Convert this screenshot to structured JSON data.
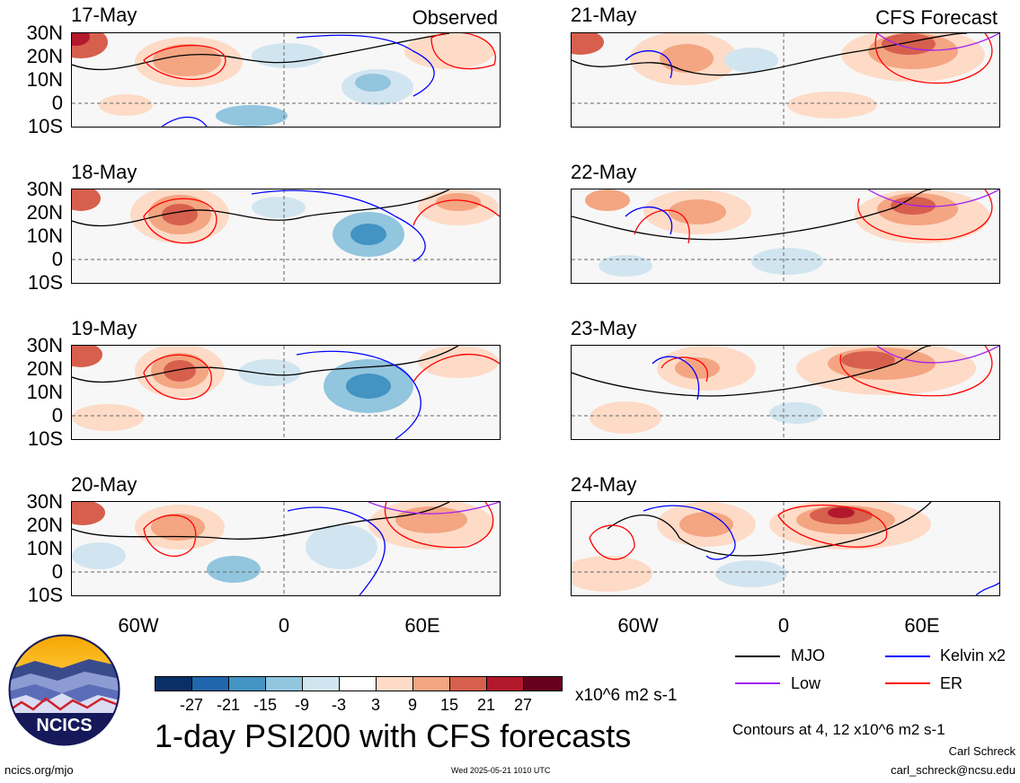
{
  "panels": [
    {
      "date": "17-May",
      "tag": "Observed"
    },
    {
      "date": "21-May",
      "tag": "CFS Forecast"
    },
    {
      "date": "18-May",
      "tag": ""
    },
    {
      "date": "22-May",
      "tag": ""
    },
    {
      "date": "19-May",
      "tag": ""
    },
    {
      "date": "23-May",
      "tag": ""
    },
    {
      "date": "20-May",
      "tag": ""
    },
    {
      "date": "24-May",
      "tag": ""
    }
  ],
  "lat_labels": [
    "30N",
    "20N",
    "10N",
    "0",
    "10S"
  ],
  "lon_labels": [
    "60W",
    "0",
    "60E"
  ],
  "colorbar": {
    "labels": [
      "-27",
      "-21",
      "-15",
      "-9",
      "-3",
      "3",
      "9",
      "15",
      "21",
      "27"
    ],
    "colors": [
      "#0a2f66",
      "#2166ac",
      "#4393c3",
      "#92c5de",
      "#d1e5f0",
      "#ffffff",
      "#fddbc7",
      "#f4a582",
      "#d6604d",
      "#b2182b",
      "#67001f"
    ],
    "units": "x10^6 m2 s-1"
  },
  "legend": {
    "items": [
      {
        "label": "MJO",
        "color": "#000000"
      },
      {
        "label": "Kelvin x2",
        "color": "#0000ff"
      },
      {
        "label": "Low",
        "color": "#a020f0"
      },
      {
        "label": "ER",
        "color": "#ff0000"
      }
    ],
    "contours_note": "Contours at 4, 12 x10^6 m2 s-1"
  },
  "title": "1-day PSI200 with CFS forecasts",
  "logo_text": "NCICS",
  "footer": {
    "url": "ncics.org/mjo",
    "timestamp": "Wed 2025-05-21 1010 UTC",
    "author": "Carl Schreck",
    "email": "carl_schreck@ncsu.edu"
  }
}
